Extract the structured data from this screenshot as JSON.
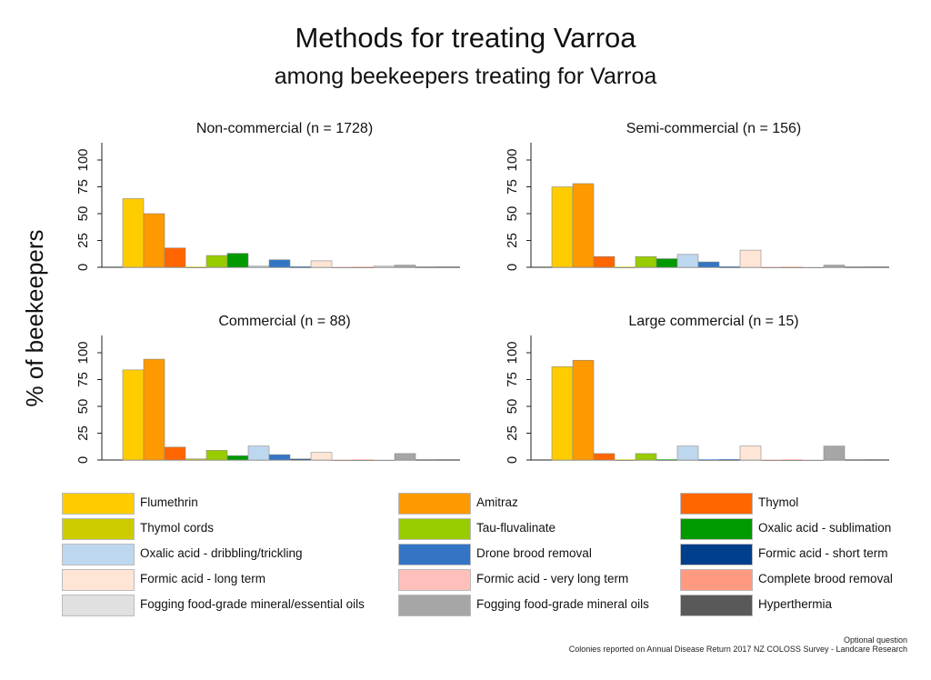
{
  "title": "Methods for treating Varroa",
  "subtitle": "among beekeepers treating for Varroa",
  "ylabel": "% of beekeepers",
  "footer": {
    "line1": "Optional question",
    "line2": "Colonies reported on Annual Disease Return 2017 NZ COLOSS Survey - Landcare Research"
  },
  "methods": [
    {
      "name": "Flumethrin",
      "color": "#FFCC00"
    },
    {
      "name": "Amitraz",
      "color": "#FF9900"
    },
    {
      "name": "Thymol",
      "color": "#FF6600"
    },
    {
      "name": "Thymol cords",
      "color": "#CCCC00"
    },
    {
      "name": "Tau-fluvalinate",
      "color": "#99CC00"
    },
    {
      "name": "Oxalic acid - sublimation",
      "color": "#009900"
    },
    {
      "name": "Oxalic acid - dribbling/trickling",
      "color": "#BDD7EE"
    },
    {
      "name": "Drone brood removal",
      "color": "#3375C4"
    },
    {
      "name": "Formic acid - short term",
      "color": "#003F8C"
    },
    {
      "name": "Formic acid - long term",
      "color": "#FFE5D6"
    },
    {
      "name": "Formic acid - very long term",
      "color": "#FFC0BB"
    },
    {
      "name": "Complete brood removal",
      "color": "#FF9980"
    },
    {
      "name": "Fogging food-grade mineral/essential oils",
      "color": "#E0E0E0"
    },
    {
      "name": "Fogging food-grade mineral oils",
      "color": "#A6A6A6"
    },
    {
      "name": "Hyperthermia",
      "color": "#595959"
    }
  ],
  "chart_data": [
    {
      "type": "bar",
      "title": "Non-commercial (n = 1728)",
      "ylim": [
        0,
        100
      ],
      "yticks": [
        "0",
        "25",
        "50",
        "75",
        "100"
      ],
      "values": [
        64,
        50,
        18,
        0,
        11,
        13,
        1,
        7,
        0,
        6,
        0,
        0,
        1,
        2,
        0
      ]
    },
    {
      "type": "bar",
      "title": "Semi-commercial (n = 156)",
      "ylim": [
        0,
        100
      ],
      "yticks": [
        "0",
        "25",
        "50",
        "75",
        "100"
      ],
      "values": [
        75,
        78,
        10,
        0,
        10,
        8,
        12,
        5,
        0,
        16,
        0,
        0,
        0,
        2,
        0
      ]
    },
    {
      "type": "bar",
      "title": "Commercial (n = 88)",
      "ylim": [
        0,
        100
      ],
      "yticks": [
        "0",
        "25",
        "50",
        "75",
        "100"
      ],
      "values": [
        84,
        94,
        12,
        1,
        9,
        4,
        13,
        5,
        1,
        7,
        0,
        0,
        0,
        6,
        0
      ]
    },
    {
      "type": "bar",
      "title": "Large commercial (n = 15)",
      "ylim": [
        0,
        100
      ],
      "yticks": [
        "0",
        "25",
        "50",
        "75",
        "100"
      ],
      "values": [
        87,
        93,
        6,
        0,
        6,
        0,
        13,
        0,
        0,
        13,
        0,
        0,
        0,
        13,
        0
      ]
    }
  ]
}
